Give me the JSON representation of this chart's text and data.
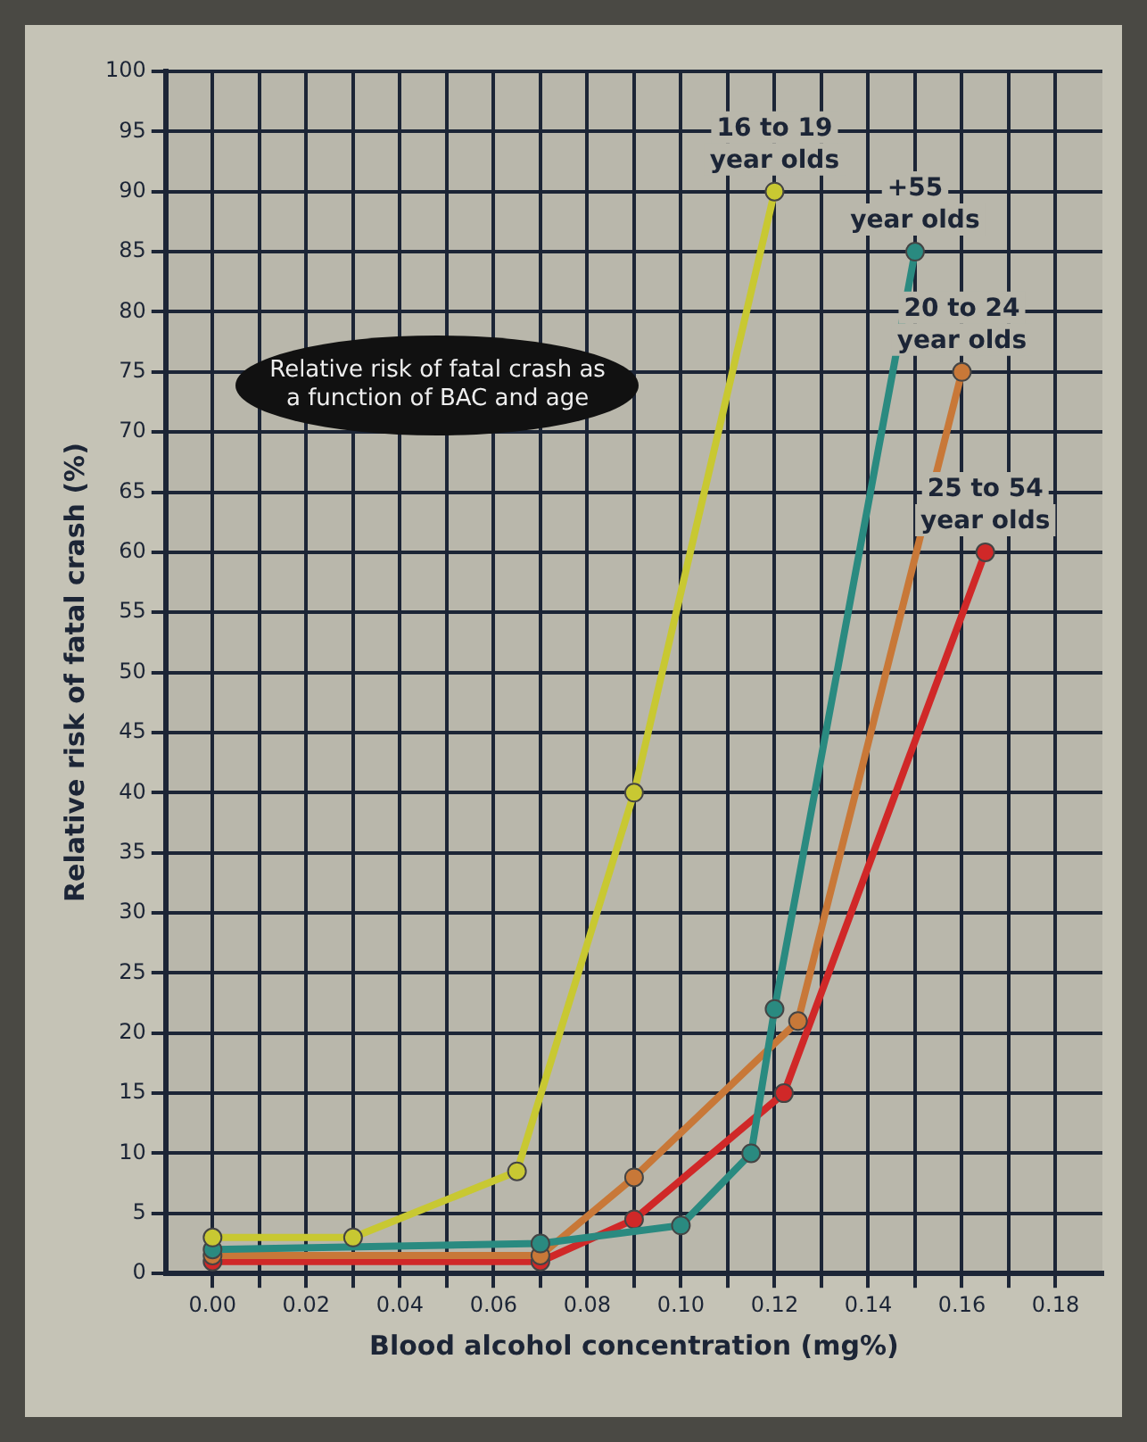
{
  "chart_data": {
    "type": "line",
    "title": "Relative risk of fatal crash as a function of BAC and age",
    "xlabel": "Blood alcohol concentration (mg%)",
    "ylabel": "Relative risk of fatal crash (%)",
    "xlim": [
      -0.01,
      0.19
    ],
    "ylim": [
      0,
      100
    ],
    "xticks": [
      {
        "value": 0,
        "label": "0.00"
      },
      {
        "value": 0.01,
        "label": null
      },
      {
        "value": 0.02,
        "label": "0.02"
      },
      {
        "value": 0.03,
        "label": null
      },
      {
        "value": 0.04,
        "label": "0.04"
      },
      {
        "value": 0.05,
        "label": null
      },
      {
        "value": 0.06,
        "label": "0.06"
      },
      {
        "value": 0.07,
        "label": null
      },
      {
        "value": 0.08,
        "label": "0.08"
      },
      {
        "value": 0.09,
        "label": null
      },
      {
        "value": 0.1,
        "label": "0.10"
      },
      {
        "value": 0.11,
        "label": null
      },
      {
        "value": 0.12,
        "label": "0.12"
      },
      {
        "value": 0.13,
        "label": null
      },
      {
        "value": 0.14,
        "label": "0.14"
      },
      {
        "value": 0.15,
        "label": null
      },
      {
        "value": 0.16,
        "label": "0.16"
      },
      {
        "value": 0.17,
        "label": null
      },
      {
        "value": 0.18,
        "label": "0.18"
      }
    ],
    "yticks": [
      0,
      5,
      10,
      15,
      20,
      25,
      30,
      35,
      40,
      45,
      50,
      55,
      60,
      65,
      70,
      75,
      80,
      85,
      90,
      95,
      100
    ],
    "grid": true,
    "legend": false,
    "marker": "circle",
    "line_style": "solid",
    "series": [
      {
        "name": "16 to 19 year olds",
        "color": "#c8c832",
        "x": [
          0,
          0.03,
          0.065,
          0.09,
          0.12
        ],
        "values": [
          3,
          3,
          8.5,
          40,
          90
        ]
      },
      {
        "name": "+55 year olds",
        "color": "#2a8a80",
        "x": [
          0,
          0.07,
          0.1,
          0.115,
          0.12,
          0.15
        ],
        "values": [
          2,
          2.5,
          4,
          10,
          22,
          85
        ]
      },
      {
        "name": "20 to 24 year olds",
        "color": "#c87838",
        "x": [
          0,
          0.07,
          0.09,
          0.125,
          0.16
        ],
        "values": [
          1.5,
          1.5,
          8,
          21,
          75
        ]
      },
      {
        "name": "25 to 54 year olds",
        "color": "#d02828",
        "x": [
          0,
          0.07,
          0.09,
          0.122,
          0.165
        ],
        "values": [
          1,
          1,
          4.5,
          15,
          60
        ]
      }
    ]
  }
}
